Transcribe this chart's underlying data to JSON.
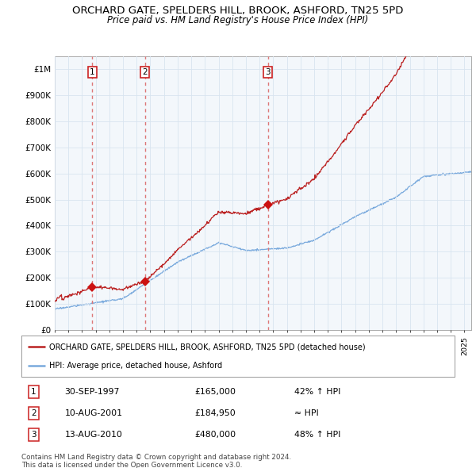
{
  "title": "ORCHARD GATE, SPELDERS HILL, BROOK, ASHFORD, TN25 5PD",
  "subtitle": "Price paid vs. HM Land Registry's House Price Index (HPI)",
  "sale_points": [
    {
      "num": 1,
      "year": 1997.75,
      "price": 165000,
      "label": "30-SEP-1997",
      "amount": "£165,000",
      "note": "42% ↑ HPI"
    },
    {
      "num": 2,
      "year": 2001.6,
      "price": 184950,
      "label": "10-AUG-2001",
      "amount": "£184,950",
      "note": "≈ HPI"
    },
    {
      "num": 3,
      "year": 2010.6,
      "price": 480000,
      "label": "13-AUG-2010",
      "amount": "£480,000",
      "note": "48% ↑ HPI"
    }
  ],
  "legend_line1": "ORCHARD GATE, SPELDERS HILL, BROOK, ASHFORD, TN25 5PD (detached house)",
  "legend_line2": "HPI: Average price, detached house, Ashford",
  "footnote1": "Contains HM Land Registry data © Crown copyright and database right 2024.",
  "footnote2": "This data is licensed under the Open Government Licence v3.0.",
  "xlim": [
    1995,
    2025.5
  ],
  "ylim": [
    0,
    1050000
  ],
  "yticks": [
    0,
    100000,
    200000,
    300000,
    400000,
    500000,
    600000,
    700000,
    800000,
    900000,
    1000000
  ],
  "ytick_labels": [
    "£0",
    "£100K",
    "£200K",
    "£300K",
    "£400K",
    "£500K",
    "£600K",
    "£700K",
    "£800K",
    "£900K",
    "£1M"
  ],
  "red_line_color": "#bb2222",
  "blue_line_color": "#7aaadd",
  "sale_marker_color": "#cc1111",
  "dashed_line_color": "#dd7777",
  "grid_color": "#d8e4f0",
  "shade_color": "#e8f0f8",
  "background_color": "#ffffff"
}
